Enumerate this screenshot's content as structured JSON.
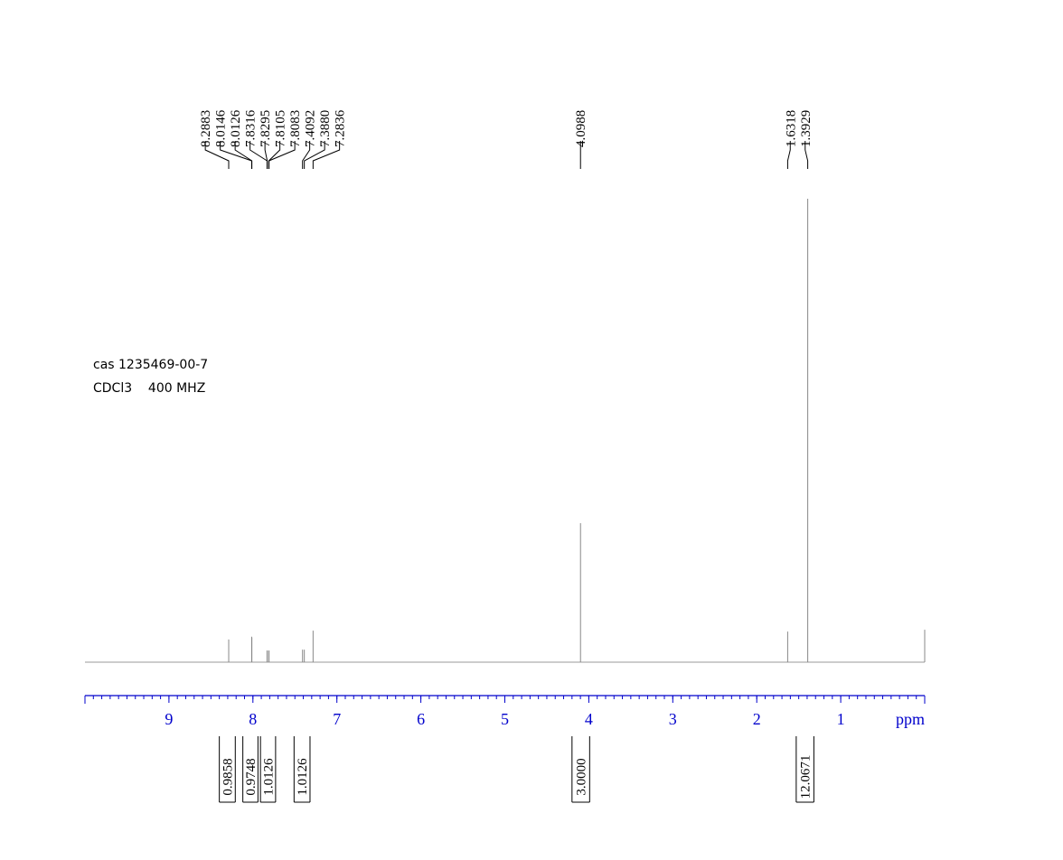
{
  "chart_data": {
    "type": "nmr",
    "annotations": [
      "cas 1235469-00-7",
      "CDCl3    400 MHZ"
    ],
    "xlabel": "ppm",
    "xlim": [
      10,
      0
    ],
    "xticks": [
      9,
      8,
      7,
      6,
      5,
      4,
      3,
      2,
      1
    ],
    "xminor": 0.1,
    "ylim": [
      0,
      100
    ],
    "peaks": {
      "x": [
        8.2883,
        8.0146,
        8.0126,
        7.8316,
        7.8295,
        7.8105,
        7.8083,
        7.4092,
        7.388,
        7.2836,
        4.0988,
        1.6318,
        1.3929,
        0.0
      ],
      "values": [
        4.9,
        5.5,
        5.3,
        2.5,
        2.5,
        2.5,
        2.5,
        2.7,
        2.7,
        6.8,
        30,
        6.6,
        100,
        7.0
      ]
    },
    "peak_labels": {
      "values": [
        8.2883,
        8.0146,
        8.0126,
        7.8316,
        7.8295,
        7.8105,
        7.8083,
        7.4092,
        7.388,
        7.2836,
        4.0988,
        1.6318,
        1.3929
      ],
      "value_labels": [
        "8.2883",
        "8.0146",
        "8.0126",
        "7.8316",
        "7.8295",
        "7.8105",
        "7.8083",
        "7.4092",
        "7.3880",
        "7.2836",
        "4.0988",
        "1.6318",
        "1.3929"
      ]
    },
    "integrals": [
      {
        "range": [
          8.4,
          8.21
        ],
        "value": 0.9858,
        "label": "0.9858"
      },
      {
        "range": [
          8.12,
          7.94
        ],
        "value": 0.9748,
        "label": "0.9748"
      },
      {
        "range": [
          7.91,
          7.73
        ],
        "value": 1.0126,
        "label": "1.0126"
      },
      {
        "range": [
          7.51,
          7.32
        ],
        "value": 1.0126,
        "label": "1.0126"
      },
      {
        "range": [
          4.2,
          3.99
        ],
        "value": 3.0,
        "label": "3.0000"
      },
      {
        "range": [
          1.53,
          1.32
        ],
        "value": 12.0671,
        "label": "12.0671"
      }
    ]
  }
}
